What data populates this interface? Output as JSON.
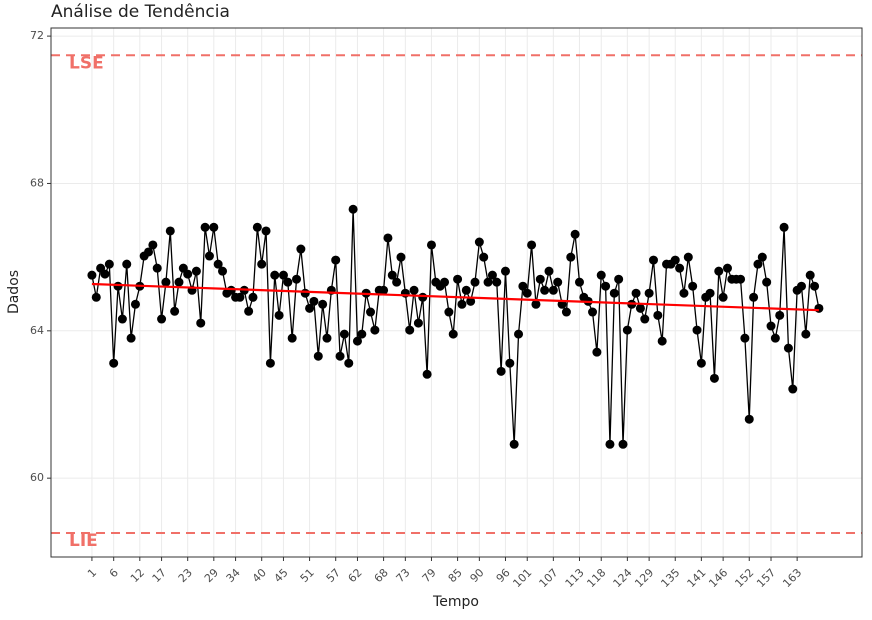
{
  "chart_data": {
    "type": "line",
    "title": "Análise de Tendência",
    "x_label": "Tempo",
    "y_label": "Dados",
    "x": [
      1,
      2,
      3,
      4,
      5,
      6,
      7,
      8,
      9,
      10,
      11,
      12,
      13,
      14,
      15,
      16,
      17,
      18,
      19,
      20,
      21,
      22,
      23,
      24,
      25,
      26,
      27,
      28,
      29,
      30,
      31,
      32,
      33,
      34,
      35,
      36,
      37,
      38,
      39,
      40,
      41,
      42,
      43,
      44,
      45,
      46,
      47,
      48,
      49,
      50,
      51,
      52,
      53,
      54,
      55,
      56,
      57,
      58,
      59,
      60,
      61,
      62,
      63,
      64,
      65,
      66,
      67,
      68,
      69,
      70,
      71,
      72,
      73,
      74,
      75,
      76,
      77,
      78,
      79,
      80,
      81,
      82,
      83,
      84,
      85,
      86,
      87,
      88,
      89,
      90,
      91,
      92,
      93,
      94,
      95,
      96,
      97,
      98,
      99,
      100,
      101,
      102,
      103,
      104,
      105,
      106,
      107,
      108,
      109,
      110,
      111,
      112,
      113,
      114,
      115,
      116,
      117,
      118,
      119,
      120,
      121,
      122,
      123,
      124,
      125,
      126,
      127,
      128,
      129,
      130,
      131,
      132,
      133,
      134,
      135,
      136,
      137,
      138,
      139,
      140,
      141,
      142,
      143,
      144,
      145,
      146,
      147,
      148,
      149,
      150,
      151,
      152,
      153,
      154,
      155,
      156,
      157,
      158,
      159,
      160,
      161,
      162,
      163,
      164,
      165,
      166,
      167,
      168
    ],
    "series": [
      {
        "color": "#000000",
        "values": [
          65.51,
          64.91,
          65.7,
          65.54,
          65.81,
          63.12,
          65.21,
          64.32,
          65.81,
          63.8,
          64.72,
          65.21,
          66.03,
          66.14,
          66.33,
          65.7,
          64.32,
          65.32,
          66.71,
          64.53,
          65.32,
          65.7,
          65.54,
          65.1,
          65.62,
          64.21,
          66.81,
          66.03,
          66.81,
          65.81,
          65.62,
          65.02,
          65.1,
          64.91,
          64.91,
          65.1,
          64.53,
          64.91,
          66.81,
          65.81,
          66.71,
          63.12,
          65.51,
          64.42,
          65.51,
          65.32,
          63.8,
          65.4,
          66.22,
          65.02,
          64.61,
          64.8,
          63.31,
          64.72,
          63.8,
          65.1,
          65.92,
          63.31,
          63.91,
          63.12,
          67.3,
          63.72,
          63.91,
          65.02,
          64.51,
          64.02,
          65.1,
          65.1,
          66.52,
          65.51,
          65.32,
          66.0,
          65.02,
          64.02,
          65.1,
          64.21,
          64.91,
          62.82,
          66.33,
          65.32,
          65.21,
          65.32,
          64.51,
          63.91,
          65.4,
          64.72,
          65.1,
          64.8,
          65.32,
          66.41,
          66.0,
          65.32,
          65.51,
          65.32,
          62.9,
          65.62,
          63.12,
          60.92,
          63.91,
          65.21,
          65.02,
          66.33,
          64.72,
          65.4,
          65.1,
          65.62,
          65.1,
          65.32,
          64.72,
          64.51,
          66.0,
          66.62,
          65.32,
          64.91,
          64.8,
          64.51,
          63.42,
          65.51,
          65.21,
          60.92,
          65.02,
          65.4,
          60.92,
          64.02,
          64.72,
          65.02,
          64.61,
          64.32,
          65.02,
          65.92,
          64.42,
          63.72,
          65.81,
          65.81,
          65.92,
          65.7,
          65.02,
          66.0,
          65.21,
          64.02,
          63.12,
          64.91,
          65.02,
          62.71,
          65.62,
          64.91,
          65.7,
          65.4,
          65.4,
          65.4,
          63.8,
          61.6,
          64.91,
          65.81,
          66.0,
          65.32,
          64.13,
          63.8,
          64.42,
          66.81,
          63.53,
          62.42,
          65.1,
          65.21,
          63.91,
          65.51,
          65.21,
          64.61
        ]
      }
    ],
    "trend": {
      "color": "#ff0000",
      "x": [
        1,
        168
      ],
      "values": [
        65.27,
        64.56
      ]
    },
    "limits": [
      {
        "label": "LSE",
        "value": 71.48
      },
      {
        "label": "LIE",
        "value": 58.51
      }
    ],
    "limit_color": "#f07068",
    "xlim": [
      -8.4,
      177.9
    ],
    "ylim": [
      57.86,
      72.22
    ],
    "xticks": [
      1,
      6,
      12,
      17,
      23,
      29,
      34,
      40,
      45,
      51,
      57,
      62,
      68,
      73,
      79,
      85,
      90,
      96,
      101,
      107,
      113,
      118,
      124,
      129,
      135,
      141,
      146,
      152,
      157,
      163
    ],
    "yticks": [
      60,
      64,
      68,
      72
    ],
    "grid": true
  }
}
